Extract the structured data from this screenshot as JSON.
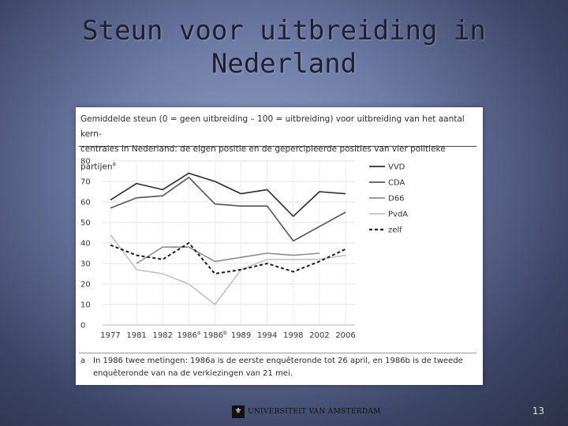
{
  "slide": {
    "title_line1": "Steun voor uitbreiding in",
    "title_line2": "Nederland",
    "page_number": "13",
    "logo_text": "UNIVERSITEIT VAN AMSTERDAM",
    "logo_mark": "⚜"
  },
  "caption": {
    "line1": "Gemiddelde steun (0 = geen uitbreiding – 100 = uitbreiding) voor uitbreiding van het aantal kern-",
    "line2": "centrales in Nederland: de eigen positie en de gepercipieerde posities van vier politieke partijen",
    "line2_sup": "a"
  },
  "footnote": {
    "marker": "a",
    "text": "In 1986 twee metingen: 1986a is de eerste enquêteronde tot 26 april, en 1986b is de tweede enquêteronde van na de verkiezingen van 21 mei."
  },
  "chart_data": {
    "type": "line",
    "categories": [
      "1977",
      "1981",
      "1982",
      "1986a",
      "1986b",
      "1989",
      "1994",
      "1998",
      "2002",
      "2006"
    ],
    "ylim": [
      0,
      80
    ],
    "yticks": [
      0,
      10,
      20,
      30,
      40,
      50,
      60,
      70,
      80
    ],
    "legend_position": "right",
    "series": [
      {
        "name": "VVD",
        "color": "#2b2b2b",
        "dash": "solid",
        "values": [
          61,
          69,
          66,
          74,
          70,
          64,
          66,
          53,
          65,
          64
        ]
      },
      {
        "name": "CDA",
        "color": "#555555",
        "dash": "solid",
        "values": [
          57,
          62,
          63,
          72,
          59,
          58,
          58,
          41,
          48,
          55
        ]
      },
      {
        "name": "D66",
        "color": "#8c8c8c",
        "dash": "solid",
        "values": [
          null,
          30,
          38,
          38,
          31,
          33,
          35,
          34,
          35,
          null
        ]
      },
      {
        "name": "PvdA",
        "color": "#c2c2c2",
        "dash": "solid",
        "values": [
          44,
          27,
          25,
          20,
          10,
          27,
          32,
          32,
          32,
          34
        ]
      },
      {
        "name": "zelf",
        "color": "#1a1a1a",
        "dash": "dashed",
        "values": [
          39,
          34,
          32,
          40,
          25,
          27,
          30,
          26,
          31,
          37
        ]
      }
    ]
  }
}
